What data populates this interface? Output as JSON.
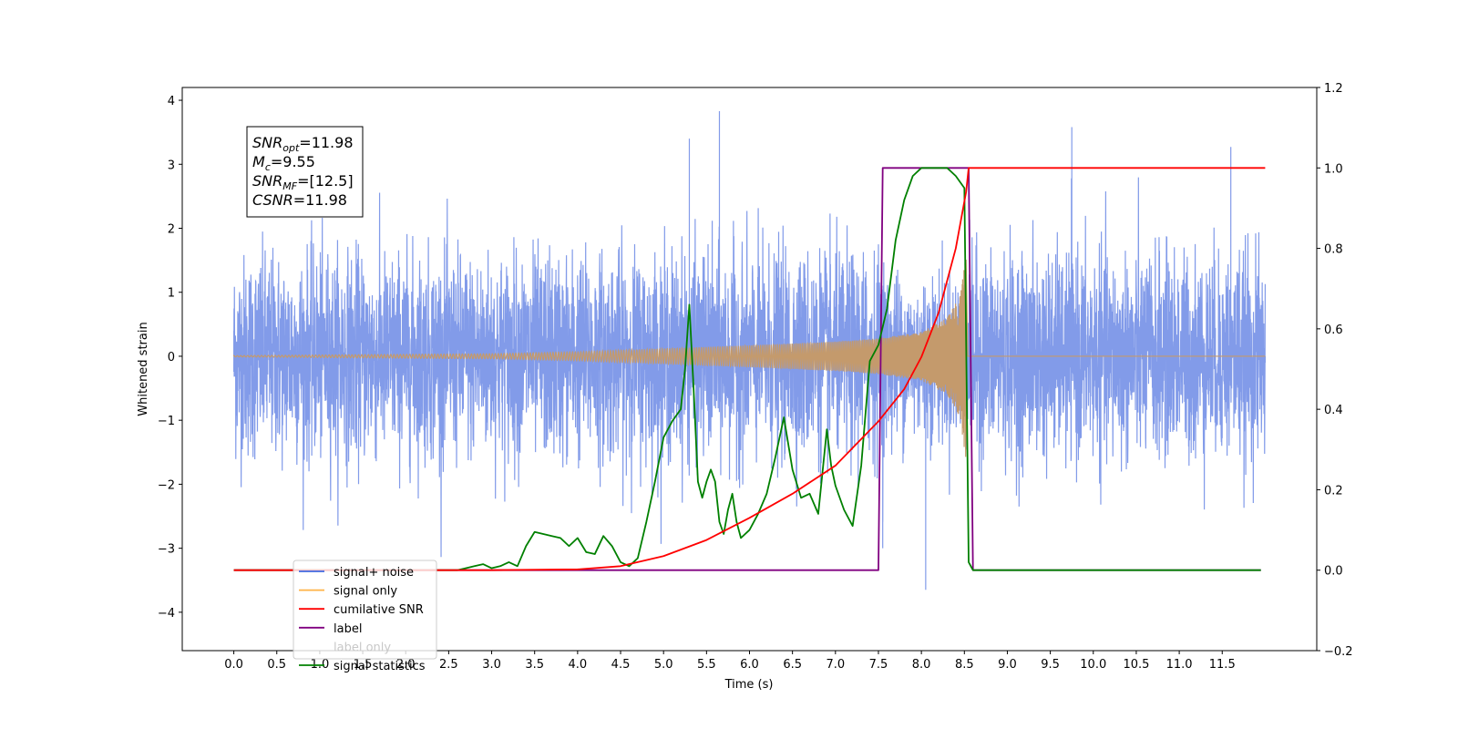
{
  "chart_data": {
    "type": "line",
    "xlabel": "Time (s)",
    "ylabel": "Whitened strain",
    "xlim": [
      -0.6,
      12.6
    ],
    "ylim": [
      -4.6,
      4.2
    ],
    "y2lim": [
      -0.2,
      1.2
    ],
    "x_ticks": [
      "0.0",
      "0.5",
      "1.0",
      "1.5",
      "2.0",
      "2.5",
      "3.0",
      "3.5",
      "4.0",
      "4.5",
      "5.0",
      "5.5",
      "6.0",
      "6.5",
      "7.0",
      "7.5",
      "8.0",
      "8.5",
      "9.0",
      "9.5",
      "10.0",
      "10.5",
      "11.0",
      "11.5"
    ],
    "y_ticks": [
      "−4",
      "−3",
      "−2",
      "−1",
      "0",
      "1",
      "2",
      "3",
      "4"
    ],
    "y2_ticks": [
      "−0.2",
      "0.0",
      "0.2",
      "0.4",
      "0.6",
      "0.8",
      "1.0",
      "1.2"
    ],
    "annotation": {
      "lines": [
        {
          "var": "SNR",
          "sub": "opt",
          "value": "=11.98"
        },
        {
          "var": "M",
          "sub": "c",
          "value": "=9.55"
        },
        {
          "var": "SNR",
          "sub": "MF",
          "value": "=[12.5]"
        },
        {
          "var": "CSNR",
          "sub": "",
          "value": "=11.98"
        }
      ]
    },
    "legend": {
      "placement": "lower-left",
      "entries": [
        {
          "label": "signal+ noise",
          "color": "#4169e1"
        },
        {
          "label": "signal only",
          "color": "#ffb347"
        },
        {
          "label": "cumilative SNR",
          "color": "#ff0000"
        },
        {
          "label": "label",
          "color": "#800080"
        },
        {
          "label": "label only",
          "color": "#c8c8c8"
        },
        {
          "label": "signal statistics",
          "color": "#008000"
        }
      ]
    },
    "series": [
      {
        "name": "signal+ noise",
        "axis": "left",
        "color": "#7b96e8",
        "t_start": 0.0,
        "t_end": 12.0,
        "noise_std": 0.78,
        "ringdown_start": 7.6,
        "ringdown_end": 8.52,
        "x_sample": [
          0.0,
          5.3,
          5.65,
          7.55,
          8.05,
          9.75,
          11.6,
          12.0
        ],
        "y_sample": [
          0.4,
          3.4,
          3.83,
          -3.0,
          -3.65,
          3.58,
          3.27,
          -0.1
        ]
      },
      {
        "name": "signal only",
        "axis": "left",
        "color": "#c49a6c",
        "t_start": 0.0,
        "t_merge": 8.52,
        "t_end": 12.0,
        "envelope_x": [
          0.0,
          3.0,
          4.0,
          5.0,
          6.0,
          7.0,
          7.5,
          8.0,
          8.3,
          8.45,
          8.52
        ],
        "envelope_y": [
          0.01,
          0.04,
          0.07,
          0.12,
          0.17,
          0.23,
          0.28,
          0.38,
          0.6,
          0.95,
          1.65
        ]
      },
      {
        "name": "cumilative SNR",
        "axis": "right",
        "color": "#ff0000",
        "x": [
          0.0,
          3.0,
          4.0,
          4.5,
          5.0,
          5.5,
          6.0,
          6.5,
          7.0,
          7.5,
          7.8,
          8.0,
          8.2,
          8.4,
          8.52,
          8.55,
          12.0
        ],
        "y": [
          0.0,
          0.0,
          0.002,
          0.01,
          0.035,
          0.075,
          0.13,
          0.19,
          0.26,
          0.37,
          0.45,
          0.53,
          0.64,
          0.8,
          0.94,
          1.0,
          1.0
        ]
      },
      {
        "name": "label",
        "axis": "right",
        "color": "#800080",
        "x": [
          0.0,
          7.5,
          7.55,
          8.55,
          8.6,
          11.95
        ],
        "y": [
          0.0,
          0.0,
          1.0,
          1.0,
          0.0,
          0.0
        ]
      },
      {
        "name": "signal statistics",
        "axis": "right",
        "color": "#008000",
        "x": [
          0.0,
          2.6,
          2.8,
          2.9,
          3.0,
          3.1,
          3.2,
          3.3,
          3.4,
          3.5,
          3.6,
          3.7,
          3.8,
          3.9,
          4.0,
          4.1,
          4.2,
          4.3,
          4.4,
          4.5,
          4.6,
          4.7,
          4.8,
          4.9,
          5.0,
          5.1,
          5.2,
          5.25,
          5.3,
          5.35,
          5.4,
          5.45,
          5.5,
          5.55,
          5.6,
          5.65,
          5.7,
          5.75,
          5.8,
          5.85,
          5.9,
          6.0,
          6.1,
          6.2,
          6.3,
          6.4,
          6.5,
          6.6,
          6.7,
          6.8,
          6.9,
          6.95,
          7.0,
          7.1,
          7.2,
          7.3,
          7.4,
          7.5,
          7.6,
          7.7,
          7.8,
          7.9,
          8.0,
          8.1,
          8.2,
          8.3,
          8.4,
          8.5,
          8.55,
          8.6,
          11.95
        ],
        "y": [
          0.0,
          0.0,
          0.01,
          0.015,
          0.005,
          0.01,
          0.02,
          0.01,
          0.06,
          0.095,
          0.09,
          0.085,
          0.08,
          0.06,
          0.08,
          0.045,
          0.04,
          0.085,
          0.06,
          0.02,
          0.01,
          0.03,
          0.12,
          0.22,
          0.33,
          0.37,
          0.4,
          0.5,
          0.66,
          0.45,
          0.22,
          0.18,
          0.22,
          0.25,
          0.22,
          0.12,
          0.09,
          0.15,
          0.19,
          0.12,
          0.08,
          0.1,
          0.14,
          0.19,
          0.28,
          0.38,
          0.25,
          0.18,
          0.19,
          0.14,
          0.35,
          0.26,
          0.21,
          0.15,
          0.11,
          0.26,
          0.52,
          0.56,
          0.65,
          0.82,
          0.92,
          0.98,
          1.0,
          1.0,
          1.0,
          1.0,
          0.98,
          0.95,
          0.02,
          0.0,
          0.0
        ]
      }
    ]
  }
}
